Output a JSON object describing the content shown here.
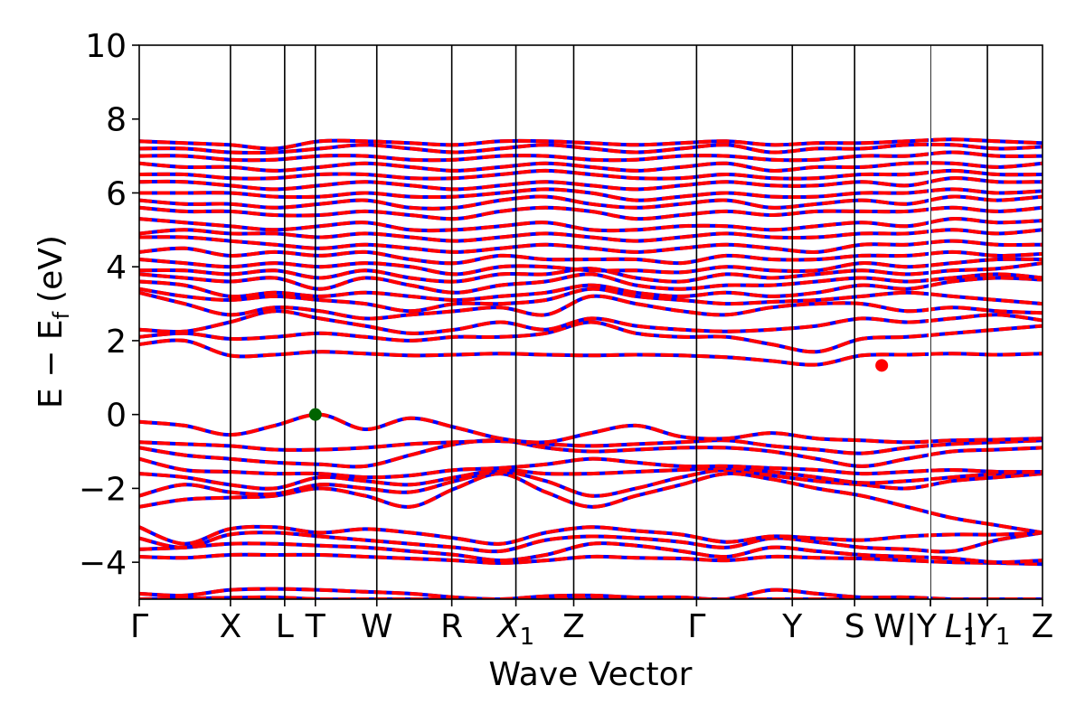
{
  "chart_data": {
    "type": "line",
    "title": "",
    "xlabel": "Wave Vector",
    "ylabel": "E − E",
    "ylabel_sub": "f",
    "ylabel_unit": "(eV)",
    "ylim": [
      -5,
      10
    ],
    "xlim": [
      0,
      1
    ],
    "y_ticks": [
      {
        "value": 10,
        "label": "10"
      },
      {
        "value": 8,
        "label": "8"
      },
      {
        "value": 6,
        "label": "6"
      },
      {
        "value": 4,
        "label": "4"
      },
      {
        "value": 2,
        "label": "2"
      },
      {
        "value": 0,
        "label": "0"
      },
      {
        "value": -2,
        "label": "−2"
      },
      {
        "value": -4,
        "label": "−4"
      }
    ],
    "k_points": [
      {
        "label": "Γ",
        "sub": "",
        "x": 0.0
      },
      {
        "label": "X",
        "sub": "",
        "x": 0.101
      },
      {
        "label": "L",
        "sub": "",
        "x": 0.161
      },
      {
        "label": "T",
        "sub": "",
        "x": 0.195
      },
      {
        "label": "W",
        "sub": "",
        "x": 0.263
      },
      {
        "label": "R",
        "sub": "",
        "x": 0.346
      },
      {
        "label": "X",
        "sub": "1",
        "x": 0.417
      },
      {
        "label": "Z",
        "sub": "",
        "x": 0.481
      },
      {
        "label": "Γ",
        "sub": "",
        "x": 0.617
      },
      {
        "label": "Y",
        "sub": "",
        "x": 0.723
      },
      {
        "label": "S",
        "sub": "",
        "x": 0.792
      },
      {
        "label": "W|Y",
        "sub": "",
        "x": 0.876
      },
      {
        "label": "L",
        "sub": "1",
        "x": 0.876
      },
      {
        "label": "|Y",
        "sub": "1",
        "x": 0.939
      },
      {
        "label": "Z",
        "sub": "",
        "x": 1.0
      }
    ],
    "segment_breaks": [
      0.876
    ],
    "markers": [
      {
        "name": "VBM",
        "x": 0.195,
        "y": 0.0,
        "color": "#006400"
      },
      {
        "name": "CBM",
        "x": 0.822,
        "y": 1.33,
        "color": "#ff0000"
      }
    ],
    "series": [
      {
        "color": "#0000ff",
        "style": "solid"
      },
      {
        "color": "#ff0000",
        "style": "dashed"
      }
    ],
    "bands": [
      [
        -5.0,
        -4.98,
        -4.96,
        -4.95,
        -5.0,
        -5.0,
        -5.0,
        -5.0,
        -5.0,
        -5.0,
        -5.0,
        -5.0,
        -5.0,
        -5.0,
        -5.0,
        -5.0,
        -5.0,
        -5.0,
        -5.0,
        -5.0,
        -5.0
      ],
      [
        -4.85,
        -4.9,
        -4.75,
        -4.72,
        -4.75,
        -4.8,
        -4.85,
        -4.95,
        -5.0,
        -4.92,
        -4.9,
        -4.95,
        -4.95,
        -5.0,
        -4.75,
        -4.85,
        -4.95,
        -4.95,
        -5.0,
        -5.0,
        -5.0
      ],
      [
        -3.85,
        -3.88,
        -3.8,
        -3.8,
        -3.8,
        -3.85,
        -3.9,
        -3.95,
        -4.02,
        -3.95,
        -3.85,
        -3.88,
        -3.9,
        -3.95,
        -3.85,
        -3.88,
        -3.9,
        -3.95,
        -4.0,
        -4.02,
        -4.05
      ],
      [
        -3.65,
        -3.6,
        -3.5,
        -3.5,
        -3.55,
        -3.6,
        -3.7,
        -3.8,
        -3.95,
        -3.8,
        -3.5,
        -3.55,
        -3.7,
        -3.85,
        -3.6,
        -3.7,
        -3.8,
        -3.85,
        -3.9,
        -4.0,
        -3.95
      ],
      [
        -3.35,
        -3.6,
        -3.25,
        -3.2,
        -3.3,
        -3.4,
        -3.5,
        -3.6,
        -3.7,
        -3.4,
        -3.3,
        -3.35,
        -3.45,
        -3.6,
        -3.35,
        -3.45,
        -3.6,
        -3.65,
        -3.7,
        -3.4,
        -3.2
      ],
      [
        -3.05,
        -3.5,
        -3.1,
        -3.05,
        -3.2,
        -3.1,
        -3.2,
        -3.35,
        -3.5,
        -3.2,
        -3.05,
        -3.15,
        -3.25,
        -3.45,
        -3.3,
        -3.35,
        -3.4,
        -3.3,
        -3.25,
        -3.25,
        -3.2
      ],
      [
        -2.5,
        -2.3,
        -2.25,
        -2.2,
        -2.0,
        -2.2,
        -2.5,
        -2.0,
        -1.6,
        -2.1,
        -2.5,
        -2.2,
        -1.9,
        -1.6,
        -1.75,
        -2.0,
        -2.2,
        -2.5,
        -2.8,
        -3.0,
        -3.2
      ],
      [
        -2.2,
        -1.9,
        -2.1,
        -2.15,
        -1.9,
        -2.0,
        -2.1,
        -1.8,
        -1.55,
        -1.8,
        -2.2,
        -2.0,
        -1.7,
        -1.5,
        -1.65,
        -1.8,
        -1.9,
        -2.0,
        -1.8,
        -1.7,
        -1.6
      ],
      [
        -1.6,
        -1.7,
        -1.9,
        -2.0,
        -1.7,
        -1.8,
        -1.9,
        -1.7,
        -1.5,
        -1.6,
        -1.6,
        -1.55,
        -1.5,
        -1.45,
        -1.55,
        -1.7,
        -1.85,
        -1.8,
        -1.7,
        -1.6,
        -1.55
      ],
      [
        -1.2,
        -1.5,
        -1.55,
        -1.6,
        -1.6,
        -1.7,
        -1.65,
        -1.5,
        -1.45,
        -1.35,
        -1.2,
        -1.3,
        -1.4,
        -1.4,
        -1.45,
        -1.5,
        -1.6,
        -1.55,
        -1.5,
        -1.55,
        -1.55
      ],
      [
        -0.9,
        -1.1,
        -1.2,
        -1.3,
        -1.35,
        -1.4,
        -1.1,
        -0.8,
        -0.7,
        -0.9,
        -1.0,
        -0.95,
        -0.9,
        -0.9,
        -1.0,
        -1.2,
        -1.4,
        -1.2,
        -1.0,
        -0.95,
        -0.9
      ],
      [
        -0.75,
        -0.8,
        -0.85,
        -0.95,
        -0.95,
        -0.9,
        -0.8,
        -0.75,
        -0.72,
        -0.8,
        -0.85,
        -0.8,
        -0.75,
        -0.7,
        -0.85,
        -0.95,
        -1.05,
        -0.9,
        -0.8,
        -0.75,
        -0.7
      ],
      [
        -0.2,
        -0.3,
        -0.55,
        -0.3,
        0.0,
        -0.4,
        -0.1,
        -0.35,
        -0.65,
        -0.75,
        -0.5,
        -0.3,
        -0.6,
        -0.65,
        -0.5,
        -0.65,
        -0.7,
        -0.75,
        -0.7,
        -0.68,
        -0.65
      ],
      [
        1.9,
        2.0,
        1.6,
        1.62,
        1.7,
        1.65,
        1.6,
        1.62,
        1.65,
        1.62,
        1.6,
        1.62,
        1.6,
        1.55,
        1.45,
        1.35,
        1.6,
        1.62,
        1.65,
        1.62,
        1.65
      ],
      [
        2.1,
        2.2,
        2.05,
        2.1,
        2.2,
        2.1,
        2.0,
        2.1,
        2.1,
        2.2,
        2.5,
        2.2,
        2.1,
        2.1,
        1.9,
        1.7,
        2.05,
        2.1,
        2.2,
        2.3,
        2.4
      ],
      [
        2.3,
        2.25,
        2.5,
        2.8,
        2.6,
        2.4,
        2.2,
        2.3,
        2.5,
        2.3,
        2.6,
        2.4,
        2.3,
        2.25,
        2.3,
        2.4,
        2.6,
        2.5,
        2.6,
        2.7,
        2.55
      ],
      [
        3.3,
        3.0,
        2.7,
        2.9,
        2.8,
        2.6,
        2.7,
        2.8,
        2.9,
        2.7,
        3.2,
        3.0,
        2.8,
        2.7,
        2.9,
        3.0,
        3.0,
        2.8,
        2.9,
        2.8,
        2.75
      ],
      [
        3.4,
        3.2,
        3.1,
        3.2,
        3.1,
        3.0,
        2.8,
        3.0,
        3.0,
        3.1,
        3.4,
        3.2,
        3.1,
        3.0,
        3.05,
        3.1,
        3.2,
        3.3,
        3.2,
        3.1,
        3.0
      ],
      [
        3.6,
        3.5,
        3.2,
        3.3,
        3.2,
        3.3,
        3.2,
        3.1,
        3.2,
        3.3,
        3.5,
        3.3,
        3.2,
        3.3,
        3.2,
        3.3,
        3.5,
        3.4,
        3.6,
        3.7,
        3.65
      ],
      [
        3.8,
        3.7,
        3.6,
        3.7,
        3.4,
        3.7,
        3.5,
        3.3,
        3.5,
        3.6,
        3.8,
        3.5,
        3.4,
        3.5,
        3.5,
        3.6,
        3.7,
        3.6,
        3.7,
        3.8,
        3.7
      ],
      [
        3.9,
        3.9,
        3.8,
        3.9,
        3.7,
        3.9,
        3.7,
        3.6,
        3.8,
        3.8,
        3.95,
        3.7,
        3.6,
        3.8,
        3.7,
        3.8,
        3.9,
        3.8,
        3.9,
        3.95,
        4.1
      ],
      [
        4.2,
        4.1,
        4.0,
        4.1,
        4.0,
        4.1,
        4.0,
        3.8,
        4.0,
        4.0,
        3.9,
        3.9,
        3.85,
        4.0,
        3.9,
        3.9,
        4.1,
        4.0,
        4.1,
        4.2,
        4.2
      ],
      [
        4.4,
        4.5,
        4.3,
        4.4,
        4.3,
        4.4,
        4.2,
        4.1,
        4.3,
        4.2,
        4.2,
        4.2,
        4.1,
        4.3,
        4.2,
        4.2,
        4.3,
        4.3,
        4.4,
        4.3,
        4.35
      ],
      [
        4.8,
        4.8,
        4.7,
        4.6,
        4.5,
        4.6,
        4.5,
        4.4,
        4.5,
        4.6,
        4.5,
        4.4,
        4.5,
        4.6,
        4.5,
        4.4,
        4.6,
        4.6,
        4.7,
        4.6,
        4.6
      ],
      [
        4.9,
        5.0,
        4.9,
        4.9,
        4.8,
        4.9,
        4.8,
        4.7,
        4.8,
        4.9,
        4.8,
        4.7,
        4.8,
        4.9,
        4.8,
        4.8,
        4.9,
        4.9,
        5.0,
        4.9,
        5.0
      ],
      [
        5.3,
        5.2,
        5.1,
        5.0,
        5.1,
        5.2,
        5.0,
        5.0,
        5.1,
        5.2,
        5.0,
        5.0,
        5.1,
        5.1,
        5.0,
        5.1,
        5.2,
        5.1,
        5.3,
        5.2,
        5.25
      ],
      [
        5.6,
        5.5,
        5.5,
        5.4,
        5.4,
        5.5,
        5.4,
        5.3,
        5.5,
        5.6,
        5.5,
        5.3,
        5.4,
        5.5,
        5.4,
        5.5,
        5.5,
        5.5,
        5.6,
        5.5,
        5.6
      ],
      [
        5.8,
        5.7,
        5.7,
        5.6,
        5.7,
        5.8,
        5.6,
        5.6,
        5.8,
        5.9,
        5.7,
        5.6,
        5.7,
        5.8,
        5.6,
        5.7,
        5.8,
        5.7,
        5.9,
        5.8,
        5.9
      ],
      [
        6.0,
        6.0,
        6.0,
        5.9,
        5.9,
        6.0,
        5.9,
        5.9,
        6.0,
        6.1,
        6.0,
        5.8,
        5.9,
        6.0,
        5.9,
        5.9,
        6.0,
        6.0,
        6.1,
        6.0,
        6.05
      ],
      [
        6.3,
        6.3,
        6.2,
        6.1,
        6.2,
        6.3,
        6.2,
        6.1,
        6.2,
        6.3,
        6.2,
        6.1,
        6.2,
        6.3,
        6.2,
        6.2,
        6.3,
        6.2,
        6.4,
        6.3,
        6.3
      ],
      [
        6.5,
        6.5,
        6.4,
        6.4,
        6.5,
        6.5,
        6.4,
        6.4,
        6.5,
        6.6,
        6.5,
        6.4,
        6.4,
        6.5,
        6.4,
        6.4,
        6.5,
        6.5,
        6.6,
        6.5,
        6.5
      ],
      [
        6.8,
        6.7,
        6.7,
        6.6,
        6.7,
        6.8,
        6.7,
        6.6,
        6.7,
        6.8,
        6.7,
        6.6,
        6.7,
        6.8,
        6.6,
        6.7,
        6.7,
        6.8,
        6.8,
        6.7,
        6.8
      ],
      [
        7.0,
        7.0,
        6.9,
        6.9,
        7.0,
        7.0,
        6.9,
        6.9,
        7.0,
        7.0,
        6.9,
        6.9,
        7.0,
        7.0,
        6.9,
        6.9,
        7.0,
        7.0,
        7.1,
        7.0,
        7.0
      ],
      [
        7.2,
        7.2,
        7.1,
        7.1,
        7.2,
        7.3,
        7.2,
        7.1,
        7.2,
        7.3,
        7.2,
        7.1,
        7.2,
        7.3,
        7.1,
        7.2,
        7.2,
        7.3,
        7.3,
        7.2,
        7.25
      ],
      [
        7.4,
        7.35,
        7.3,
        7.2,
        7.4,
        7.4,
        7.35,
        7.3,
        7.4,
        7.4,
        7.35,
        7.3,
        7.35,
        7.4,
        7.3,
        7.35,
        7.35,
        7.4,
        7.45,
        7.4,
        7.35
      ]
    ]
  }
}
